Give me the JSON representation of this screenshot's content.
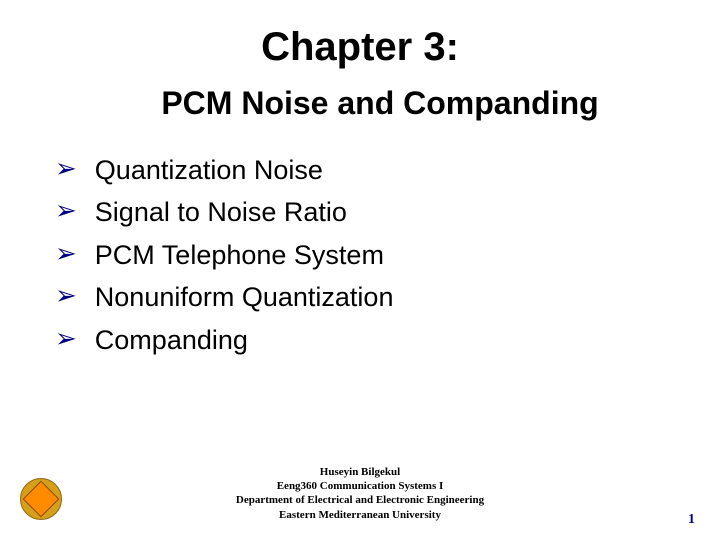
{
  "chapter_title": "Chapter 3:",
  "subtitle": "PCM Noise and Companding",
  "bullets": [
    "Quantization Noise",
    "Signal to Noise Ratio",
    "PCM Telephone System",
    "Nonuniform Quantization",
    "Companding"
  ],
  "footer": {
    "line1": "Huseyin Bilgekul",
    "line2": "Eeng360 Communication Systems I",
    "line3": "Department of Electrical and Electronic Engineering",
    "line4": "Eastern Mediterranean University"
  },
  "slide_number": "1",
  "colors": {
    "bullet_arrow": "#000080",
    "slide_number": "#000080",
    "text": "#000000",
    "background": "#ffffff",
    "logo_outer": "#d4a017",
    "logo_inner": "#ff8c00"
  }
}
